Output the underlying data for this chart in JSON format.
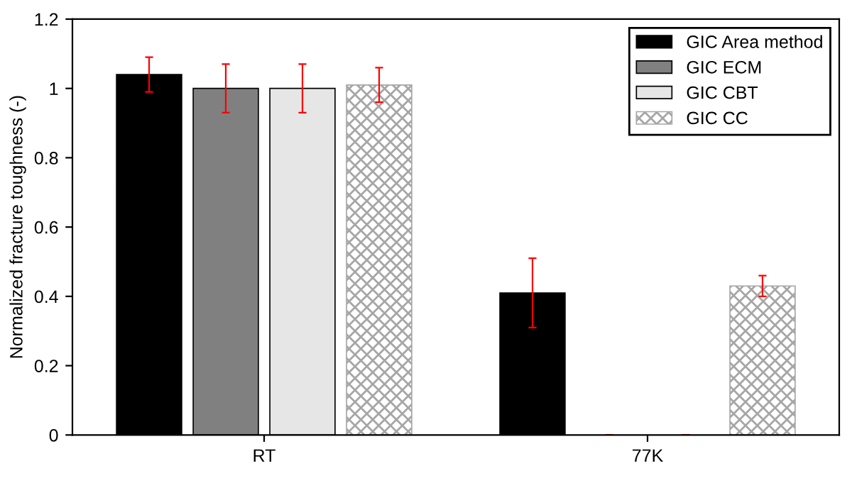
{
  "chart_data": {
    "type": "bar",
    "ylabel": "Normalized fracture toughness (-)",
    "categories": [
      "RT",
      "77K"
    ],
    "series": [
      {
        "name": "GIC Area method",
        "color": "#000000",
        "values": [
          1.04,
          0.41
        ],
        "errors": [
          0.05,
          0.1
        ]
      },
      {
        "name": "GIC ECM",
        "color": "#808080",
        "values": [
          1.0,
          0
        ],
        "errors": [
          0.07,
          0
        ]
      },
      {
        "name": "GIC CBT",
        "color": "#e6e6e6",
        "values": [
          1.0,
          0
        ],
        "errors": [
          0.07,
          0
        ]
      },
      {
        "name": "GIC CC",
        "color": "#a6a6a6",
        "values": [
          1.01,
          0.43
        ],
        "errors": [
          0.05,
          0.03
        ]
      }
    ],
    "ylim": [
      0,
      1.2
    ],
    "yticks": [
      0,
      0.2,
      0.4,
      0.6,
      0.8,
      1,
      1.2
    ],
    "grid": false,
    "legend": "top right"
  }
}
